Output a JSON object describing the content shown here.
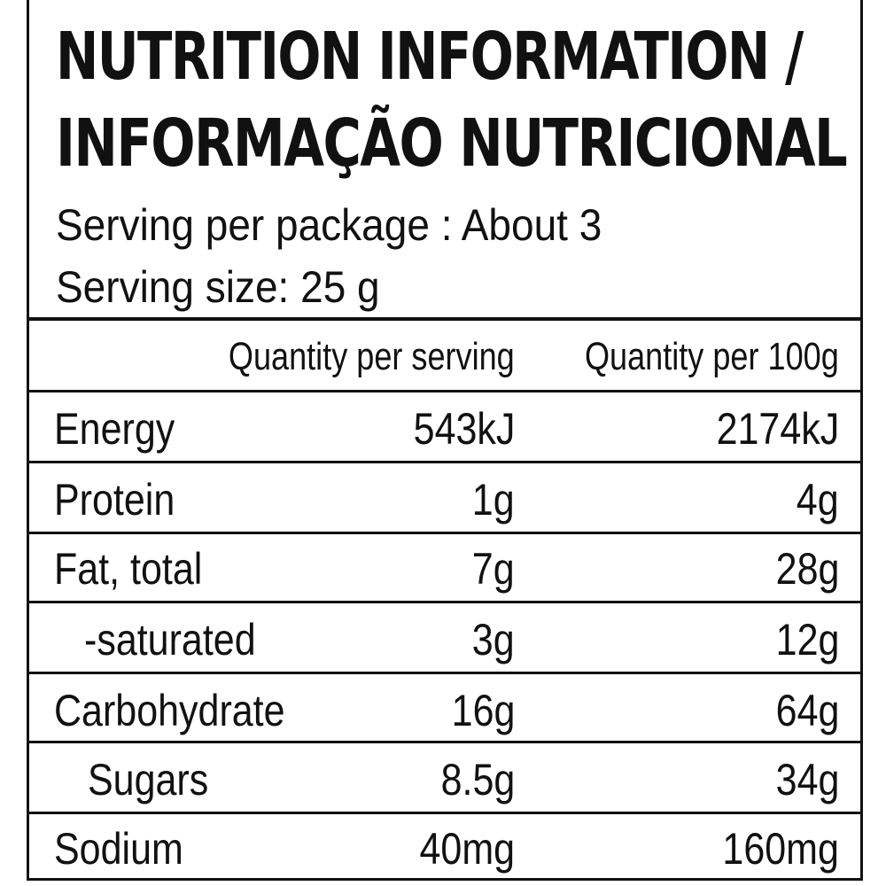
{
  "title": {
    "line1": "NUTRITION INFORMATION /",
    "line2": "INFORMAÇÃO NUTRICIONAL"
  },
  "serving": {
    "per_package": "Serving per package : About 3",
    "size": "Serving size: 25 g"
  },
  "columns": {
    "per_serving": "Quantity per serving",
    "per_100g": "Quantity per 100g"
  },
  "rows": [
    {
      "label": "Energy",
      "per_serving": "543kJ",
      "per_100g": "2174kJ"
    },
    {
      "label": "Protein",
      "per_serving": "1g",
      "per_100g": "4g"
    },
    {
      "label": "Fat, total",
      "per_serving": "7g",
      "per_100g": "28g"
    },
    {
      "label": "-saturated",
      "per_serving": "3g",
      "per_100g": "12g"
    },
    {
      "label": "Carbohydrate",
      "per_serving": "16g",
      "per_100g": "64g"
    },
    {
      "label": "Sugars",
      "per_serving": "8.5g",
      "per_100g": "34g"
    },
    {
      "label": "Sodium",
      "per_serving": "40mg",
      "per_100g": "160mg"
    }
  ]
}
